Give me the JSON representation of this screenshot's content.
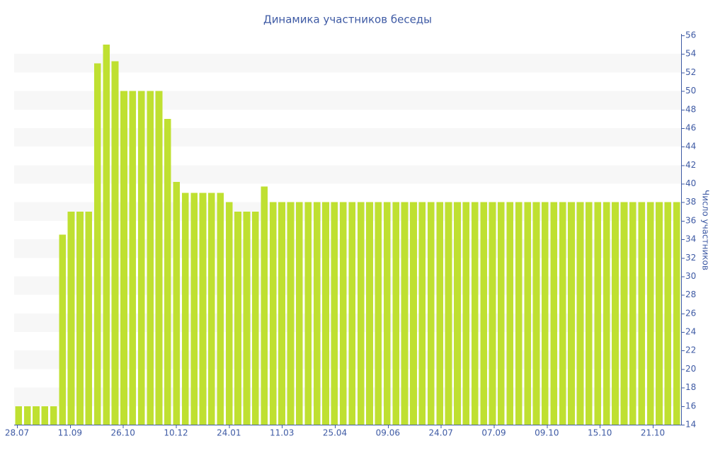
{
  "chart_data": {
    "type": "bar",
    "title": "Динамика участников беседы",
    "xlabel": "",
    "ylabel": "Число участников",
    "ylim": [
      14,
      56
    ],
    "ytick_step": 2,
    "xtick_labels": [
      "28.07",
      "11.09",
      "26.10",
      "10.12",
      "24.01",
      "11.03",
      "25.04",
      "09.06",
      "24.07",
      "07.09",
      "09.10",
      "15.10",
      "21.10"
    ],
    "values": [
      16,
      16,
      16,
      16,
      16,
      34.5,
      37,
      37,
      37,
      53,
      55,
      53.2,
      50,
      50,
      50,
      50,
      50,
      47,
      40.2,
      39,
      39,
      39,
      39,
      39,
      38,
      37,
      37,
      37,
      39.7,
      38,
      38,
      38,
      38,
      38,
      38,
      38,
      38,
      38,
      38,
      38,
      38,
      38,
      38,
      38,
      38,
      38,
      38,
      38,
      38,
      38,
      38,
      38,
      38,
      38,
      38,
      38,
      38,
      38,
      38,
      38,
      38,
      38,
      38,
      38,
      38,
      38,
      38,
      38,
      38,
      38,
      38,
      38,
      38,
      38,
      38,
      38
    ],
    "grid": true,
    "legend": "none"
  },
  "colors": {
    "bar": "#bfe031",
    "band": "#f7f7f7",
    "text": "#3e5aa4",
    "axis": "#3e5aa4"
  }
}
